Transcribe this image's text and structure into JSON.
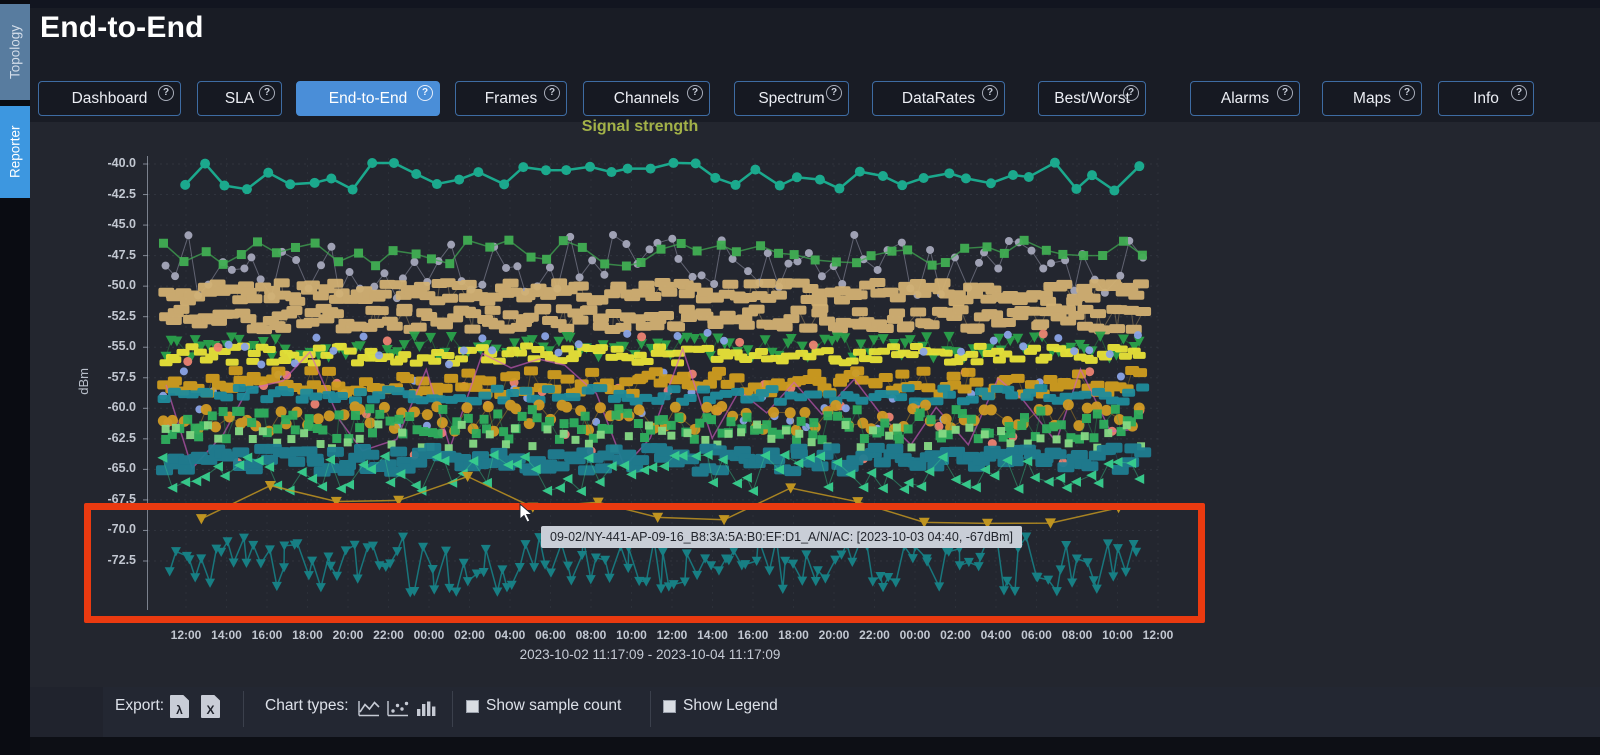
{
  "app": {
    "title": "End-to-End"
  },
  "sidebar": {
    "tabs": [
      {
        "label": "Topology",
        "active": false
      },
      {
        "label": "Reporter",
        "active": true
      }
    ]
  },
  "nav": {
    "help_glyph": "?",
    "tabs": [
      {
        "label": "Dashboard",
        "active": false
      },
      {
        "label": "SLA",
        "active": false
      },
      {
        "label": "End-to-End",
        "active": true
      },
      {
        "label": "Frames",
        "active": false
      },
      {
        "label": "Channels",
        "active": false
      },
      {
        "label": "Spectrum",
        "active": false
      },
      {
        "label": "DataRates",
        "active": false
      },
      {
        "label": "Best/Worst",
        "active": false
      },
      {
        "label": "Alarms",
        "active": false
      },
      {
        "label": "Maps",
        "active": false
      },
      {
        "label": "Info",
        "active": false
      }
    ]
  },
  "chart_data": {
    "type": "line",
    "title": "Signal strength",
    "ylabel": "dBm",
    "ylim": [
      -76,
      -39
    ],
    "grid": true,
    "legend": "hidden",
    "y_ticks": [
      -40.0,
      -42.5,
      -45.0,
      -47.5,
      -50.0,
      -52.5,
      -55.0,
      -57.5,
      -60.0,
      -62.5,
      -65.0,
      -67.5,
      -70.0,
      -72.5
    ],
    "y_tick_labels": [
      "-40.0",
      "-42.5",
      "-45.0",
      "-47.5",
      "-50.0",
      "-52.5",
      "-55.0",
      "-57.5",
      "-60.0",
      "-62.5",
      "-65.0",
      "-67.5",
      "-70.0",
      "-72.5"
    ],
    "x_tick_labels": [
      "12:00",
      "14:00",
      "16:00",
      "18:00",
      "20:00",
      "22:00",
      "00:00",
      "02:00",
      "04:00",
      "06:00",
      "08:00",
      "10:00",
      "12:00",
      "14:00",
      "16:00",
      "18:00",
      "20:00",
      "22:00",
      "00:00",
      "02:00",
      "04:00",
      "06:00",
      "08:00",
      "10:00",
      "12:00"
    ],
    "x_range_label": "2023-10-02 11:17:09 - 2023-10-04 11:17:09",
    "series": [
      {
        "name": "ap-top-line",
        "color": "#1bb193",
        "marker": "circle",
        "size": 5,
        "points": 46,
        "level_dbm": -41.0,
        "jitter_dbm": 1.2,
        "connect": true,
        "line_width": 2.5,
        "line_opacity": 1,
        "x_range": [
          42,
          994
        ]
      },
      {
        "name": "ap-scatter-gray",
        "color": "#a6a8bc",
        "marker": "circle",
        "size": 4,
        "points": 90,
        "level_dbm": -48.4,
        "jitter_dbm": 2.6,
        "connect": true,
        "line_width": 1,
        "line_opacity": 0.5
      },
      {
        "name": "ap-squares-green",
        "color": "#41ae53",
        "marker": "square",
        "size": 9,
        "points": 52,
        "level_dbm": -47.3,
        "jitter_dbm": 1.1,
        "connect": true,
        "line_width": 1.5,
        "line_opacity": 0.75
      },
      {
        "name": "ap-band-tan-upper",
        "color": "#d2b173",
        "marker": "dash",
        "size": [
          16,
          9
        ],
        "points": 170,
        "level_dbm": -50.5,
        "jitter_dbm": 0.8,
        "connect": true,
        "line_width": 1,
        "line_opacity": 0.4
      },
      {
        "name": "ap-band-tan-lower",
        "color": "#d2b173",
        "marker": "dash",
        "size": [
          16,
          9
        ],
        "points": 170,
        "level_dbm": -52.7,
        "jitter_dbm": 0.9,
        "connect": true,
        "line_width": 1,
        "line_opacity": 0.4
      },
      {
        "name": "ap-triangles-green",
        "color": "#2aa24b",
        "marker": "tri-down",
        "size": 5.5,
        "points": 130,
        "level_dbm": -55.0,
        "jitter_dbm": 0.9,
        "connect": true,
        "line_width": 1,
        "line_opacity": 0.45
      },
      {
        "name": "ap-band-yellow",
        "color": "#e9e338",
        "marker": "dash",
        "size": [
          13,
          7
        ],
        "points": 150,
        "level_dbm": -55.6,
        "jitter_dbm": 0.7,
        "connect": false
      },
      {
        "name": "ap-dots-salmon",
        "color": "#ec8272",
        "marker": "circle",
        "size": 4.5,
        "points": 40,
        "level_dbm": -59.0,
        "jitter_dbm": 5.5,
        "connect": false
      },
      {
        "name": "ap-dots-periwinkle",
        "color": "#8ba4e6",
        "marker": "circle",
        "size": 4,
        "points": 60,
        "level_dbm": -57.7,
        "jitter_dbm": 4.0,
        "connect": false
      },
      {
        "name": "ap-band-olive",
        "color": "#cf9d1f",
        "marker": "dash",
        "size": [
          14,
          9
        ],
        "points": 150,
        "level_dbm": -57.9,
        "jitter_dbm": 1.0,
        "connect": true,
        "line_width": 1,
        "line_opacity": 0.35
      },
      {
        "name": "ap-zigzag-magenta",
        "color": "#d45cc5",
        "marker": "none",
        "size": 0,
        "points": 35,
        "level_dbm": -60.0,
        "jitter_dbm": 5.0,
        "connect": true,
        "line_width": 1.5,
        "line_opacity": 0.65
      },
      {
        "name": "ap-band-teal-upper",
        "color": "#1f8c9c",
        "marker": "dash",
        "size": [
          13,
          8
        ],
        "points": 110,
        "level_dbm": -58.9,
        "jitter_dbm": 0.6,
        "connect": false
      },
      {
        "name": "ap-circles-orange",
        "color": "#d09a24",
        "marker": "circle",
        "size": 5.5,
        "points": 95,
        "level_dbm": -60.8,
        "jitter_dbm": 1.1,
        "connect": true,
        "line_width": 1,
        "line_opacity": 0.45
      },
      {
        "name": "ap-band-green",
        "color": "#2fae5e",
        "marker": "square",
        "size": 9,
        "points": 140,
        "level_dbm": -61.3,
        "jitter_dbm": 1.3,
        "connect": true,
        "line_width": 1,
        "line_opacity": 0.4
      },
      {
        "name": "ap-squares-lightgreen",
        "color": "#86da85",
        "marker": "square",
        "size": 8,
        "points": 70,
        "level_dbm": -62.3,
        "jitter_dbm": 1.0,
        "connect": false
      },
      {
        "name": "ap-band-teal-lower",
        "color": "#1f7e92",
        "marker": "dash",
        "size": [
          17,
          10
        ],
        "points": 160,
        "level_dbm": -64.2,
        "jitter_dbm": 1.0,
        "connect": true,
        "line_width": 1,
        "line_opacity": 0.35
      },
      {
        "name": "ap-triangles-spring",
        "color": "#38cf8e",
        "marker": "tri-left",
        "size": 5,
        "points": 95,
        "level_dbm": -65.3,
        "jitter_dbm": 1.5,
        "connect": true,
        "line_width": 1,
        "line_opacity": 0.45
      },
      {
        "name": "ap-outliers-mustard",
        "color": "#c89a20",
        "marker": "tri-down",
        "size": 5.5,
        "points": 15,
        "level_dbm": -67.5,
        "jitter_dbm": 2.0,
        "connect": true,
        "line_width": 1.5,
        "line_opacity": 0.85,
        "x_range": [
          60,
          975
        ]
      },
      {
        "name": "09-02/NY-441-AP-09-16_B8:3A:5A:B0:EF:D1_A/N/AC",
        "color": "#178489",
        "marker": "tri-down",
        "size": 5,
        "points": 150,
        "level_dbm": -72.8,
        "jitter_dbm": 2.3,
        "connect": true,
        "line_width": 1.5,
        "line_opacity": 0.9,
        "x_range": [
          28,
          995
        ]
      }
    ]
  },
  "annotations": {
    "highlight_box": {
      "color": "#ea3a10",
      "from_dbm": -67.8,
      "to_dbm": -77.6
    },
    "tooltip": {
      "text": "09-02/NY-441-AP-09-16_B8:3A:5A:B0:EF:D1_A/N/AC: [2023-10-03 04:40, -67dBm]"
    }
  },
  "toolbar": {
    "export_label": "Export:",
    "chart_types_label": "Chart types:",
    "export_icons": [
      {
        "name": "pdf-export-icon",
        "glyph": "λ"
      },
      {
        "name": "excel-export-icon",
        "glyph": "X"
      }
    ],
    "chart_type_icons": [
      "line-chart-icon",
      "scatter-chart-icon",
      "bar-chart-icon"
    ],
    "checkboxes": [
      {
        "label": "Show sample count",
        "checked": false
      },
      {
        "label": "Show Legend",
        "checked": false
      }
    ]
  }
}
